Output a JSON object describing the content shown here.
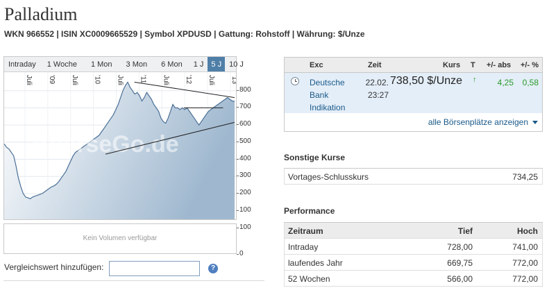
{
  "header": {
    "title": "Palladium",
    "subline": "WKN 966552 | ISIN XC0009665529 | Symbol XPDUSD | Gattung: Rohstoff | Währung: $/Unze"
  },
  "chart": {
    "tabs": [
      {
        "label": "Intraday",
        "active": false
      },
      {
        "label": "1 Woche",
        "active": false
      },
      {
        "label": "1 Mon",
        "active": false
      },
      {
        "label": "3 Mon",
        "active": false
      },
      {
        "label": "6 Mon",
        "active": false
      },
      {
        "label": "1 J",
        "active": false
      },
      {
        "label": "5 J",
        "active": true
      },
      {
        "label": "10 J",
        "active": false
      }
    ],
    "watermark": "BoerseGo.de",
    "volume_text": "Kein Volumen verfügbar",
    "volume_axis": [
      "100",
      "0"
    ]
  },
  "chart_data": {
    "type": "area",
    "x_tick_labels": [
      "Juli",
      "'09",
      "Juli",
      "'10",
      "Juli",
      "'11",
      "Juli",
      "'12",
      "Juli",
      "'13"
    ],
    "y_ticks": [
      800,
      700,
      600,
      500,
      400,
      300,
      200,
      100
    ],
    "ylim": [
      50,
      900
    ],
    "series": [
      {
        "values": [
          490,
          470,
          460,
          440,
          420,
          360,
          290,
          240,
          200,
          180,
          175,
          170,
          180,
          185,
          190,
          195,
          200,
          210,
          220,
          230,
          240,
          245,
          255,
          270,
          290,
          310,
          330,
          360,
          390,
          420,
          440,
          450,
          460,
          470,
          480,
          490,
          500,
          510,
          520,
          530,
          540,
          560,
          580,
          600,
          620,
          640,
          660,
          690,
          720,
          760,
          800,
          830,
          850,
          820,
          800,
          780,
          790,
          770,
          740,
          760,
          790,
          770,
          750,
          720,
          700,
          680,
          640,
          620,
          610,
          640,
          680,
          720,
          700,
          700,
          690,
          700,
          690,
          700,
          680,
          660,
          640,
          620,
          600,
          620,
          640,
          660,
          680,
          690,
          700,
          710,
          720,
          730,
          740,
          750,
          760,
          750,
          740,
          738.5
        ]
      }
    ],
    "trend_lines": [
      {
        "from": [
          "Jan '11",
          850
        ],
        "to": [
          "Jan '13",
          760
        ]
      },
      {
        "from": [
          "Jul '09",
          430
        ],
        "to": [
          "Jan '13",
          615
        ]
      },
      {
        "from": [
          "Jan '12",
          700
        ],
        "to": [
          "Sep '12",
          700
        ]
      }
    ],
    "grid": true
  },
  "compare": {
    "label": "Vergleichswert hinzufügen:",
    "input_value": "",
    "help_icon": "question-icon"
  },
  "quote": {
    "headers": {
      "exc": "Exc",
      "zeit": "Zeit",
      "kurs": "Kurs",
      "t": "T",
      "abs": "+/- abs",
      "pct": "+/- %"
    },
    "row": {
      "exchange_line1": "Deutsche",
      "exchange_line2": "Bank",
      "exchange_line3": "Indikation",
      "date": "22.02.",
      "time": "23:27",
      "price": "738,50 $/Unze",
      "trend_icon": "up-arrow-icon",
      "change_abs": "4,25",
      "change_pct": "0,58"
    },
    "all_exchanges_link": "alle Börsenplätze anzeigen"
  },
  "other_prices": {
    "title": "Sonstige Kurse",
    "rows": [
      {
        "label": "Vortages-Schlusskurs",
        "value": "734,25"
      }
    ]
  },
  "performance": {
    "title": "Performance",
    "headers": {
      "period": "Zeitraum",
      "low": "Tief",
      "high": "Hoch"
    },
    "rows": [
      {
        "period": "Intraday",
        "low": "728,00",
        "high": "741,00"
      },
      {
        "period": "laufendes Jahr",
        "low": "669,75",
        "high": "772,00"
      },
      {
        "period": "52 Wochen",
        "low": "566,00",
        "high": "772,00"
      }
    ]
  },
  "colors": {
    "accent": "#4f7fa8",
    "line": "#4a6f96",
    "positive": "#2a9a2a",
    "link": "#1a5a8a"
  }
}
